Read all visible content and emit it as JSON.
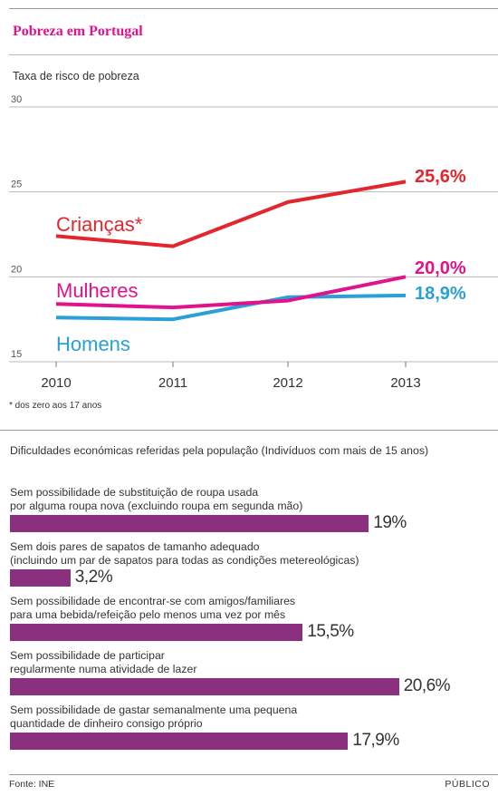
{
  "title": "Pobreza em Portugal",
  "subtitle": "Taxa de risco de pobreza",
  "footnote": "* dos zero aos 17 anos",
  "bars_title": "Dificuldades económicas referidas pela população (Indivíduos com mais de 15 anos)",
  "source": "Fonte: INE",
  "brand": "PÚBLICO",
  "colors": {
    "title": "#e0138c",
    "criancas": "#e3262d",
    "mulheres": "#e0138c",
    "homens": "#2a9fd8",
    "bars": "#8b2f7f"
  },
  "chart_data": [
    {
      "type": "line",
      "title": "Taxa de risco de pobreza",
      "x": [
        "2010",
        "2011",
        "2012",
        "2013"
      ],
      "ylim": [
        15,
        30
      ],
      "yticks": [
        "15",
        "20",
        "25",
        "30"
      ],
      "grid": true,
      "series": [
        {
          "name": "Crianças*",
          "values": [
            22.4,
            21.8,
            24.4,
            25.6
          ],
          "end_label": "25,6%",
          "color": "#e3262d"
        },
        {
          "name": "Mulheres",
          "values": [
            18.4,
            18.2,
            18.6,
            20.0
          ],
          "end_label": "20,0%",
          "color": "#e0138c"
        },
        {
          "name": "Homens",
          "values": [
            17.6,
            17.5,
            18.8,
            18.9
          ],
          "end_label": "18,9%",
          "color": "#2a9fd8"
        }
      ]
    },
    {
      "type": "bar",
      "title": "Dificuldades económicas referidas pela população (Indivíduos com mais de 15 anos)",
      "orientation": "horizontal",
      "categories": [
        [
          "Sem possibilidade de substituição de roupa usada",
          "por alguma roupa nova (excluindo roupa em segunda mão)"
        ],
        [
          "Sem dois pares de sapatos de tamanho adequado",
          "(incluindo um par de sapatos para todas as condições metereológicas)"
        ],
        [
          "Sem possibilidade de encontrar-se com amigos/familiares",
          "para uma bebida/refeição pelo menos uma vez por mês"
        ],
        [
          "Sem possibilidade de participar",
          "regularmente numa atividade de lazer"
        ],
        [
          "Sem possibilidade de gastar semanalmente uma pequena",
          "quantidade de dinheiro consigo próprio"
        ]
      ],
      "values": [
        19,
        3.2,
        15.5,
        20.6,
        17.9
      ],
      "labels": [
        "19%",
        "3,2%",
        "15,5%",
        "20,6%",
        "17,9%"
      ]
    }
  ]
}
